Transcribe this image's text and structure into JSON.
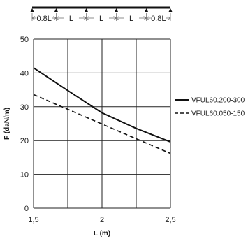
{
  "chart_data": {
    "type": "line",
    "xlabel": "L (m)",
    "ylabel": "F (daN/m)",
    "xlim": [
      1.5,
      2.5
    ],
    "ylim": [
      0,
      50
    ],
    "x_ticks": [
      1.5,
      2,
      2.5
    ],
    "x_tick_labels": [
      "1,5",
      "2",
      "2,5"
    ],
    "y_ticks": [
      0,
      10,
      20,
      30,
      40,
      50
    ],
    "y_tick_labels": [
      "0",
      "10",
      "20",
      "30",
      "40",
      "50"
    ],
    "grid": true,
    "x_gridlines": [
      1.5,
      1.75,
      2,
      2.25,
      2.5
    ],
    "legend_position": "right",
    "series": [
      {
        "name": "VFUL60.200-300",
        "style": "solid",
        "color": "#111111",
        "x": [
          1.5,
          1.75,
          2.0,
          2.25,
          2.5
        ],
        "y": [
          41.5,
          34.8,
          28.2,
          23.6,
          19.6
        ]
      },
      {
        "name": "VFUL60.050-150",
        "style": "dashed",
        "color": "#111111",
        "x": [
          1.5,
          2.5
        ],
        "y": [
          33.6,
          16.2
        ]
      }
    ],
    "span_diagram": {
      "segments": [
        "0.8L",
        "L",
        "L",
        "L",
        "0.8L"
      ],
      "weights": [
        0.8,
        1,
        1,
        1,
        0.8
      ]
    }
  }
}
